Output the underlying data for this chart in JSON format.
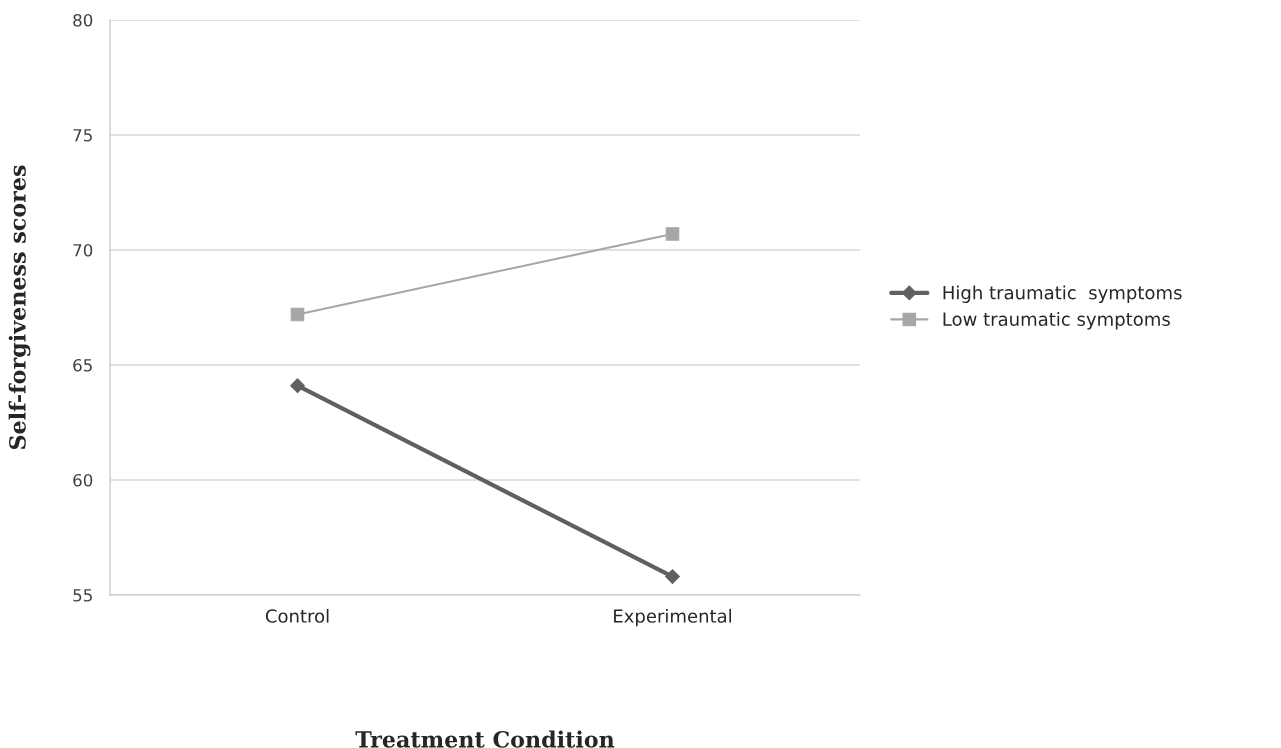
{
  "chart_data": {
    "type": "line",
    "xlabel": "Treatment Condition",
    "ylabel": "Self-forgiveness scores",
    "categories": [
      "Control",
      "Experimental"
    ],
    "series": [
      {
        "name": "High traumatic  symptoms",
        "color": "#606060",
        "values": [
          64.1,
          55.8
        ],
        "marker": "diamond"
      },
      {
        "name": "Low traumatic symptoms",
        "color": "#a6a6a6",
        "values": [
          67.2,
          70.7
        ],
        "marker": "square"
      }
    ],
    "ylim": [
      55,
      80
    ],
    "yticks": [
      55,
      60,
      65,
      70,
      75,
      80
    ],
    "grid": "y",
    "legend": "right",
    "line_style": "solid"
  }
}
